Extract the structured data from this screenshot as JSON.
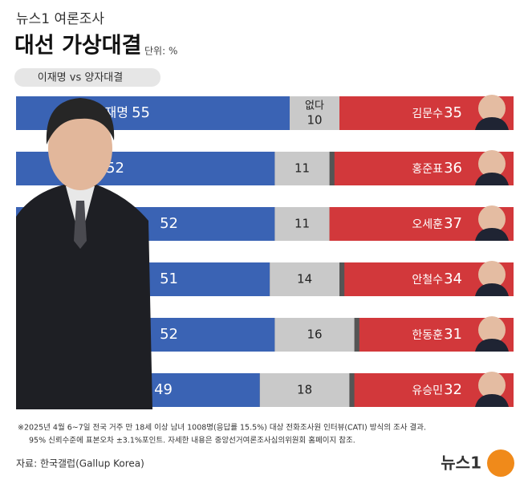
{
  "header": "뉴스1 여론조사",
  "chart_data": {
    "type": "bar",
    "title": "대선 가상대결",
    "unit": "단위: %",
    "subtitle": "이재명 vs 양자대결",
    "categories": [
      "김문수",
      "홍준표",
      "오세훈",
      "안철수",
      "한동훈",
      "유승민"
    ],
    "series": [
      {
        "name": "이재명",
        "color": "#3a63b4",
        "values": [
          55,
          52,
          52,
          51,
          52,
          49
        ]
      },
      {
        "name": "없다",
        "color": "#c9c9c9",
        "values": [
          10,
          11,
          11,
          14,
          16,
          18
        ]
      },
      {
        "color": "#d2383b",
        "values": [
          35,
          36,
          37,
          34,
          31,
          32
        ]
      }
    ],
    "xlim": [
      0,
      100
    ]
  },
  "footnote": [
    "※2025년 4월 6~7일 전국 거주 만 18세 이상 남녀 1008명(응답률 15.5%) 대상 전화조사원 인터뷰(CATI) 방식의 조사 결과.",
    "95% 신뢰수준에 표본오차 ±3.1%포인트. 자세한 내용은 중앙선거여론조사심의위원회 홈페이지 참조."
  ],
  "source": "자료: 한국갤럽(Gallup Korea)",
  "logo": "뉴스1"
}
